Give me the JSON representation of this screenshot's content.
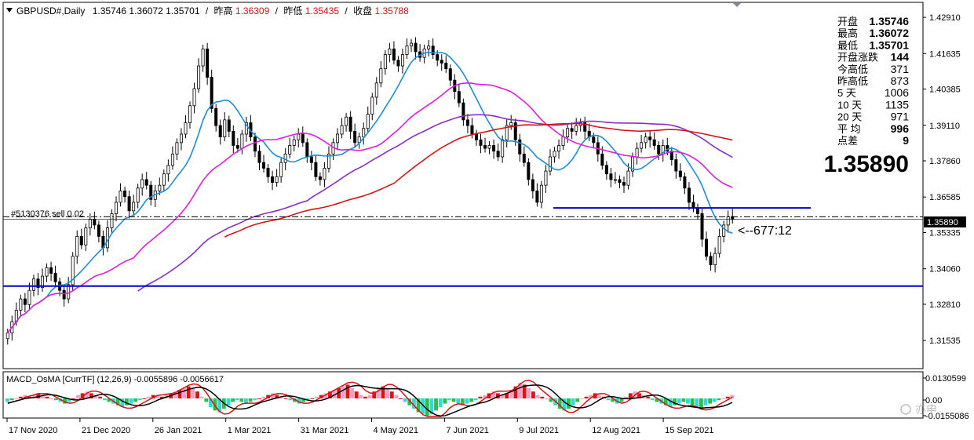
{
  "header": {
    "symbol": "GBPUSD#,Daily",
    "ohlc": "1.35746 1.36072 1.35701",
    "prev_high_label": "昨高",
    "prev_high": "1.36309",
    "prev_low_label": "昨低",
    "prev_low": "1.35435",
    "close_label": "收盘",
    "close": "1.35788",
    "sep": "/"
  },
  "info_panel": {
    "rows": [
      {
        "label": "开盘",
        "value": "1.35746"
      },
      {
        "label": "最高",
        "value": "1.36072"
      },
      {
        "label": "最低",
        "value": "1.35701"
      },
      {
        "label": "开盘涨跌",
        "value": "144"
      },
      {
        "label": "今高低",
        "value": "371"
      },
      {
        "label": "昨高低",
        "value": "873"
      },
      {
        "label": "5 天",
        "value": "1006"
      },
      {
        "label": "10 天",
        "value": "1135"
      },
      {
        "label": "20 天",
        "value": "971"
      },
      {
        "label": "平 均",
        "value": "996"
      },
      {
        "label": "点差",
        "value": "9"
      }
    ],
    "big_price": "1.35890"
  },
  "order_label": "#5130376 sell 0.02",
  "countdown": "<--677:12",
  "price_tag": "1.35890",
  "macd_label": "MACD_OsMA [CurrTF] (12,26,9) -0.0055896 -0.0056617",
  "watermark": "亦申",
  "colors": {
    "up": "#000000",
    "down": "#000000",
    "line_blue": "#1a8fd8",
    "ma_magenta": "#e01ee0",
    "ma_red": "#d81414",
    "ma_purple": "#8a2ec8",
    "hline": "#0000cc",
    "hist_green": "#2bbf4a",
    "hist_cyan": "#33d8d8",
    "hist_red": "#d81414",
    "hist_pink": "#ff9cc8"
  },
  "chart_data": {
    "type": "candlestick",
    "y_ticks": [
      "1.42910",
      "1.41635",
      "1.40385",
      "1.39110",
      "1.37860",
      "1.36585",
      "1.35335",
      "1.34060",
      "1.32810",
      "1.31535"
    ],
    "ylim": [
      1.306,
      1.433
    ],
    "x_ticks": [
      "17 Nov 2020",
      "21 Dec 2020",
      "26 Jan 2021",
      "1 Mar 2021",
      "31 Mar 2021",
      "4 May 2021",
      "7 Jun 2021",
      "9 Jul 2021",
      "12 Aug 2021",
      "15 Sep 2021"
    ],
    "close_series": [
      1.318,
      1.322,
      1.326,
      1.33,
      1.328,
      1.333,
      1.337,
      1.334,
      1.338,
      1.341,
      1.339,
      1.336,
      1.333,
      1.33,
      1.335,
      1.345,
      1.352,
      1.349,
      1.355,
      1.358,
      1.356,
      1.352,
      1.348,
      1.355,
      1.36,
      1.364,
      1.368,
      1.366,
      1.361,
      1.364,
      1.369,
      1.372,
      1.37,
      1.365,
      1.368,
      1.37,
      1.374,
      1.377,
      1.381,
      1.385,
      1.388,
      1.392,
      1.398,
      1.404,
      1.412,
      1.418,
      1.408,
      1.397,
      1.391,
      1.387,
      1.393,
      1.389,
      1.384,
      1.383,
      1.388,
      1.392,
      1.387,
      1.382,
      1.378,
      1.376,
      1.373,
      1.371,
      1.373,
      1.378,
      1.381,
      1.384,
      1.386,
      1.388,
      1.385,
      1.38,
      1.378,
      1.373,
      1.372,
      1.376,
      1.381,
      1.385,
      1.388,
      1.391,
      1.394,
      1.389,
      1.385,
      1.387,
      1.39,
      1.395,
      1.401,
      1.406,
      1.411,
      1.416,
      1.418,
      1.414,
      1.412,
      1.416,
      1.419,
      1.42,
      1.417,
      1.415,
      1.418,
      1.419,
      1.416,
      1.414,
      1.413,
      1.411,
      1.407,
      1.403,
      1.399,
      1.393,
      1.391,
      1.388,
      1.386,
      1.384,
      1.383,
      1.384,
      1.382,
      1.38,
      1.386,
      1.391,
      1.392,
      1.386,
      1.381,
      1.378,
      1.372,
      1.368,
      1.364,
      1.37,
      1.375,
      1.38,
      1.382,
      1.384,
      1.387,
      1.39,
      1.389,
      1.391,
      1.392,
      1.389,
      1.387,
      1.385,
      1.381,
      1.377,
      1.374,
      1.372,
      1.372,
      1.371,
      1.37,
      1.375,
      1.38,
      1.383,
      1.385,
      1.387,
      1.386,
      1.384,
      1.381,
      1.384,
      1.382,
      1.379,
      1.375,
      1.373,
      1.369,
      1.364,
      1.362,
      1.36,
      1.351,
      1.345,
      1.342,
      1.346,
      1.352,
      1.356,
      1.359,
      1.358
    ],
    "price_current": 1.3589,
    "hlines": [
      1.3589,
      1.362,
      1.3345
    ],
    "macd_ticks": [
      "0.0130599",
      "0.00",
      "-0.0155086"
    ],
    "macd_histogram": [
      -0.002,
      -0.001,
      0,
      0.001,
      0.002,
      0.001,
      0.002,
      0.003,
      0.002,
      0.001,
      0,
      -0.001,
      -0.002,
      -0.003,
      -0.002,
      0,
      0.002,
      0.003,
      0.004,
      0.003,
      0.002,
      0.001,
      -0.001,
      -0.002,
      -0.003,
      -0.004,
      -0.005,
      -0.004,
      -0.003,
      -0.002,
      -0.001,
      0,
      0.001,
      0.002,
      0.002,
      0.001,
      0.002,
      0.003,
      0.004,
      0.005,
      0.006,
      0.007,
      0.006,
      0.004,
      0.001,
      -0.002,
      -0.005,
      -0.007,
      -0.008,
      -0.006,
      -0.004,
      -0.002,
      -0.001,
      -0.002,
      -0.003,
      -0.002,
      -0.001,
      0,
      0.001,
      0.002,
      0.003,
      0.002,
      0.001,
      0,
      -0.001,
      -0.002,
      -0.003,
      -0.002,
      -0.001,
      0,
      0.001,
      0.002,
      0.003,
      0.004,
      0.005,
      0.006,
      0.007,
      0.008,
      0.006,
      0.004,
      0.002,
      0.001,
      0.002,
      0.004,
      0.006,
      0.007,
      0.006,
      0.004,
      0.002,
      0,
      -0.002,
      -0.004,
      -0.006,
      -0.008,
      -0.009,
      -0.01,
      -0.009,
      -0.007,
      -0.005,
      -0.003,
      -0.001,
      -0.002,
      -0.003,
      -0.004,
      -0.003,
      -0.002,
      -0.001,
      0.001,
      0.002,
      0.003,
      0.004,
      0.003,
      0.002,
      0.003,
      0.005,
      0.007,
      0.009,
      0.008,
      0.006,
      0.004,
      0.002,
      0.001,
      0,
      -0.002,
      -0.004,
      -0.006,
      -0.007,
      -0.006,
      -0.004,
      -0.002,
      0,
      0.001,
      0.002,
      0.003,
      0.002,
      0.001,
      -0.001,
      -0.002,
      -0.003,
      -0.002,
      0.001,
      0.003,
      0.004,
      0.003,
      0.002,
      0.001,
      -0.001,
      -0.002,
      -0.003,
      -0.004,
      -0.005,
      -0.004,
      -0.003,
      -0.002,
      -0.003,
      -0.004,
      -0.005,
      -0.006,
      -0.004,
      -0.003,
      -0.002,
      -0.001,
      0,
      0.001,
      0.002
    ]
  }
}
